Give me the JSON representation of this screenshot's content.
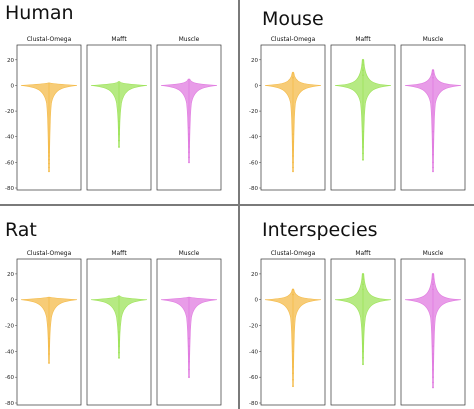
{
  "figure": {
    "divider_color": "#7a7a7a",
    "ylim": [
      -80,
      30
    ],
    "yticks": [
      20,
      0,
      -20,
      -40,
      -60,
      -80
    ],
    "quadrants": [
      {
        "title": "Human",
        "panels": [
          {
            "name": "Clustal-Omega",
            "color": "#f4bb4a",
            "max": 2,
            "min": -67,
            "outliers": [
              -52,
              -55,
              -58,
              -61,
              -64,
              -67
            ]
          },
          {
            "name": "Mafft",
            "color": "#9ee35a",
            "max": 3,
            "min": -48,
            "outliers": [
              -28,
              -33,
              -38,
              -43,
              -48
            ]
          },
          {
            "name": "Muscle",
            "color": "#e07be0",
            "max": 5,
            "min": -60,
            "outliers": [
              -33,
              -38,
              -43,
              -48,
              -52,
              -56,
              -60
            ]
          }
        ]
      },
      {
        "title": "Mouse",
        "panels": [
          {
            "name": "Clustal-Omega",
            "color": "#f4bb4a",
            "max": 10,
            "min": -67,
            "outliers": [
              6,
              10,
              -38,
              -44,
              -50,
              -55,
              -60,
              -64,
              -67
            ]
          },
          {
            "name": "Mafft",
            "color": "#9ee35a",
            "max": 20,
            "min": -58,
            "outliers": [
              8,
              12,
              16,
              20,
              -36,
              -42,
              -48,
              -53,
              -58
            ]
          },
          {
            "name": "Muscle",
            "color": "#e07be0",
            "max": 12,
            "min": -67,
            "outliers": [
              6,
              9,
              12,
              -36,
              -42,
              -48,
              -54,
              -60,
              -64,
              -67
            ]
          }
        ]
      },
      {
        "title": "Rat",
        "panels": [
          {
            "name": "Clustal-Omega",
            "color": "#f4bb4a",
            "max": 2,
            "min": -49,
            "outliers": [
              -30,
              -36,
              -42,
              -49
            ]
          },
          {
            "name": "Mafft",
            "color": "#9ee35a",
            "max": 3,
            "min": -45,
            "outliers": [
              -25,
              -31,
              -36,
              -41,
              -45
            ]
          },
          {
            "name": "Muscle",
            "color": "#e07be0",
            "max": 2,
            "min": -60,
            "outliers": [
              -30,
              -36,
              -42,
              -48,
              -54,
              -60
            ]
          }
        ]
      },
      {
        "title": "Interspecies",
        "panels": [
          {
            "name": "Clustal-Omega",
            "color": "#f4bb4a",
            "max": 8,
            "min": -67,
            "outliers": [
              4,
              8,
              -40,
              -46,
              -52,
              -57,
              -62,
              -67
            ]
          },
          {
            "name": "Mafft",
            "color": "#9ee35a",
            "max": 20,
            "min": -50,
            "outliers": [
              8,
              12,
              16,
              20,
              -34,
              -40,
              -45,
              -50
            ]
          },
          {
            "name": "Muscle",
            "color": "#e07be0",
            "max": 20,
            "min": -68,
            "outliers": [
              8,
              12,
              16,
              20,
              -36,
              -42,
              -48,
              -54,
              -60,
              -64,
              -68
            ]
          }
        ]
      }
    ]
  },
  "chart_data": [
    {
      "type": "violin",
      "title": "Human",
      "categories": [
        "Clustal-Omega",
        "Mafft",
        "Muscle"
      ],
      "ylim": [
        -80,
        30
      ],
      "series": [
        {
          "name": "Clustal-Omega",
          "median": 0,
          "max": 2,
          "min": -67
        },
        {
          "name": "Mafft",
          "median": 0,
          "max": 3,
          "min": -48
        },
        {
          "name": "Muscle",
          "median": 0,
          "max": 5,
          "min": -60
        }
      ]
    },
    {
      "type": "violin",
      "title": "Mouse",
      "categories": [
        "Clustal-Omega",
        "Mafft",
        "Muscle"
      ],
      "ylim": [
        -80,
        30
      ],
      "series": [
        {
          "name": "Clustal-Omega",
          "median": 0,
          "max": 10,
          "min": -67
        },
        {
          "name": "Mafft",
          "median": 0,
          "max": 20,
          "min": -58
        },
        {
          "name": "Muscle",
          "median": 0,
          "max": 12,
          "min": -67
        }
      ]
    },
    {
      "type": "violin",
      "title": "Rat",
      "categories": [
        "Clustal-Omega",
        "Mafft",
        "Muscle"
      ],
      "ylim": [
        -80,
        30
      ],
      "series": [
        {
          "name": "Clustal-Omega",
          "median": 0,
          "max": 2,
          "min": -49
        },
        {
          "name": "Mafft",
          "median": 0,
          "max": 3,
          "min": -45
        },
        {
          "name": "Muscle",
          "median": 0,
          "max": 2,
          "min": -60
        }
      ]
    },
    {
      "type": "violin",
      "title": "Interspecies",
      "categories": [
        "Clustal-Omega",
        "Mafft",
        "Muscle"
      ],
      "ylim": [
        -80,
        30
      ],
      "series": [
        {
          "name": "Clustal-Omega",
          "median": 0,
          "max": 8,
          "min": -67
        },
        {
          "name": "Mafft",
          "median": 0,
          "max": 20,
          "min": -50
        },
        {
          "name": "Muscle",
          "median": 0,
          "max": 20,
          "min": -68
        }
      ]
    }
  ]
}
